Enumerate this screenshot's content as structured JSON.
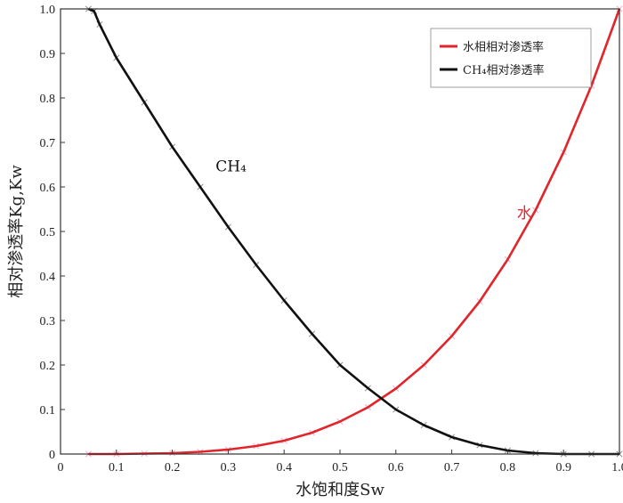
{
  "chart_data": {
    "type": "line",
    "xlabel": "水饱和度Sw",
    "ylabel": "相对渗透率Kg,Kw",
    "xlim": [
      0,
      1.0
    ],
    "ylim": [
      0,
      1.0
    ],
    "x_ticks": [
      "0",
      "0.1",
      "0.2",
      "0.3",
      "0.4",
      "0.5",
      "0.6",
      "0.7",
      "0.8",
      "0.9",
      "1.0"
    ],
    "y_ticks": [
      "0",
      "0.1",
      "0.2",
      "0.3",
      "0.4",
      "0.5",
      "0.6",
      "0.7",
      "0.8",
      "0.9",
      "1.0"
    ],
    "grid": false,
    "legend_position": "top-right",
    "series": [
      {
        "name": "水相相对渗透率",
        "color": "#e0262b",
        "marker_color": "#f2a6c4",
        "x": [
          0.05,
          0.1,
          0.15,
          0.2,
          0.25,
          0.3,
          0.35,
          0.4,
          0.45,
          0.5,
          0.55,
          0.6,
          0.65,
          0.7,
          0.75,
          0.8,
          0.85,
          0.9,
          0.95,
          1.0
        ],
        "y": [
          0.0,
          0.0,
          0.001,
          0.002,
          0.005,
          0.01,
          0.018,
          0.03,
          0.048,
          0.073,
          0.105,
          0.147,
          0.2,
          0.265,
          0.343,
          0.437,
          0.548,
          0.678,
          0.828,
          1.0
        ]
      },
      {
        "name": "CH₄相对渗透率",
        "color": "#111111",
        "marker_color": "#8a8a8a",
        "x": [
          0.05,
          0.06,
          0.07,
          0.1,
          0.15,
          0.2,
          0.25,
          0.3,
          0.35,
          0.4,
          0.45,
          0.5,
          0.55,
          0.6,
          0.65,
          0.7,
          0.75,
          0.8,
          0.85,
          0.9,
          0.95,
          1.0
        ],
        "y": [
          1.0,
          0.995,
          0.965,
          0.89,
          0.79,
          0.69,
          0.6,
          0.51,
          0.425,
          0.345,
          0.27,
          0.2,
          0.148,
          0.1,
          0.065,
          0.038,
          0.02,
          0.008,
          0.002,
          0.0,
          0.0,
          0.0
        ]
      }
    ],
    "annotations": [
      {
        "text": "CH₄",
        "x": 0.305,
        "y": 0.635,
        "color": "#111111"
      },
      {
        "text": "水",
        "x": 0.83,
        "y": 0.53,
        "color": "#e0262b"
      }
    ]
  }
}
